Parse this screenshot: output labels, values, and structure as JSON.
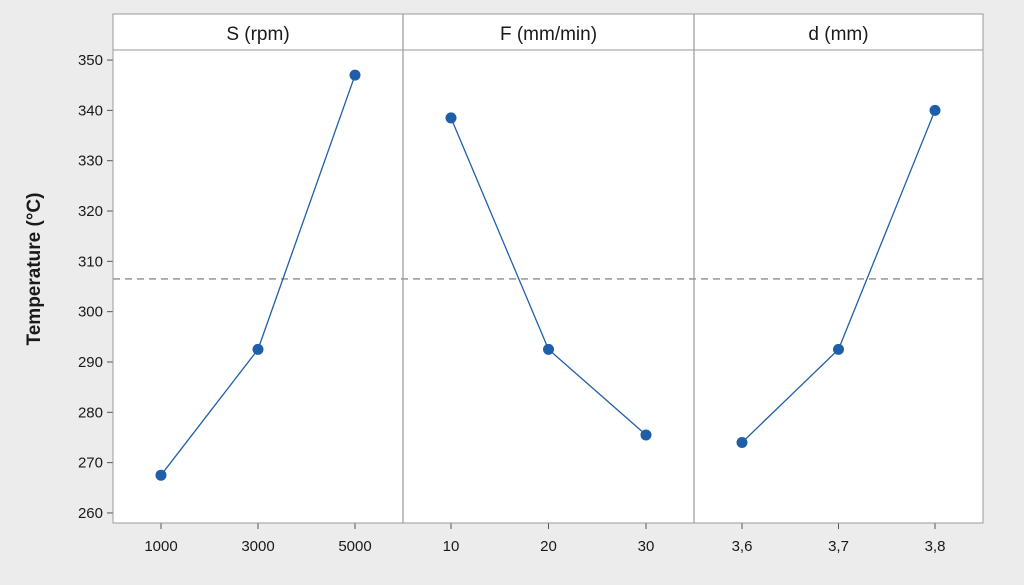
{
  "chart_data": {
    "type": "line",
    "ylabel": "Temperature (°C)",
    "ylim": [
      258,
      352
    ],
    "yticks": [
      260,
      270,
      280,
      290,
      300,
      310,
      320,
      330,
      340,
      350
    ],
    "reference_line": {
      "y": 306.5,
      "style": "dashed"
    },
    "grid": false,
    "series_color": "#1f5fa8",
    "reference_color": "#8c8c8c",
    "panels": [
      {
        "title": "S (rpm)",
        "categories": [
          "1000",
          "3000",
          "5000"
        ],
        "values": [
          267.5,
          292.5,
          347.0
        ]
      },
      {
        "title": "F (mm/min)",
        "categories": [
          "10",
          "20",
          "30"
        ],
        "values": [
          338.5,
          292.5,
          275.5
        ]
      },
      {
        "title": "d (mm)",
        "categories": [
          "3,6",
          "3,7",
          "3,8"
        ],
        "values": [
          274.0,
          292.5,
          340.0
        ]
      }
    ]
  }
}
